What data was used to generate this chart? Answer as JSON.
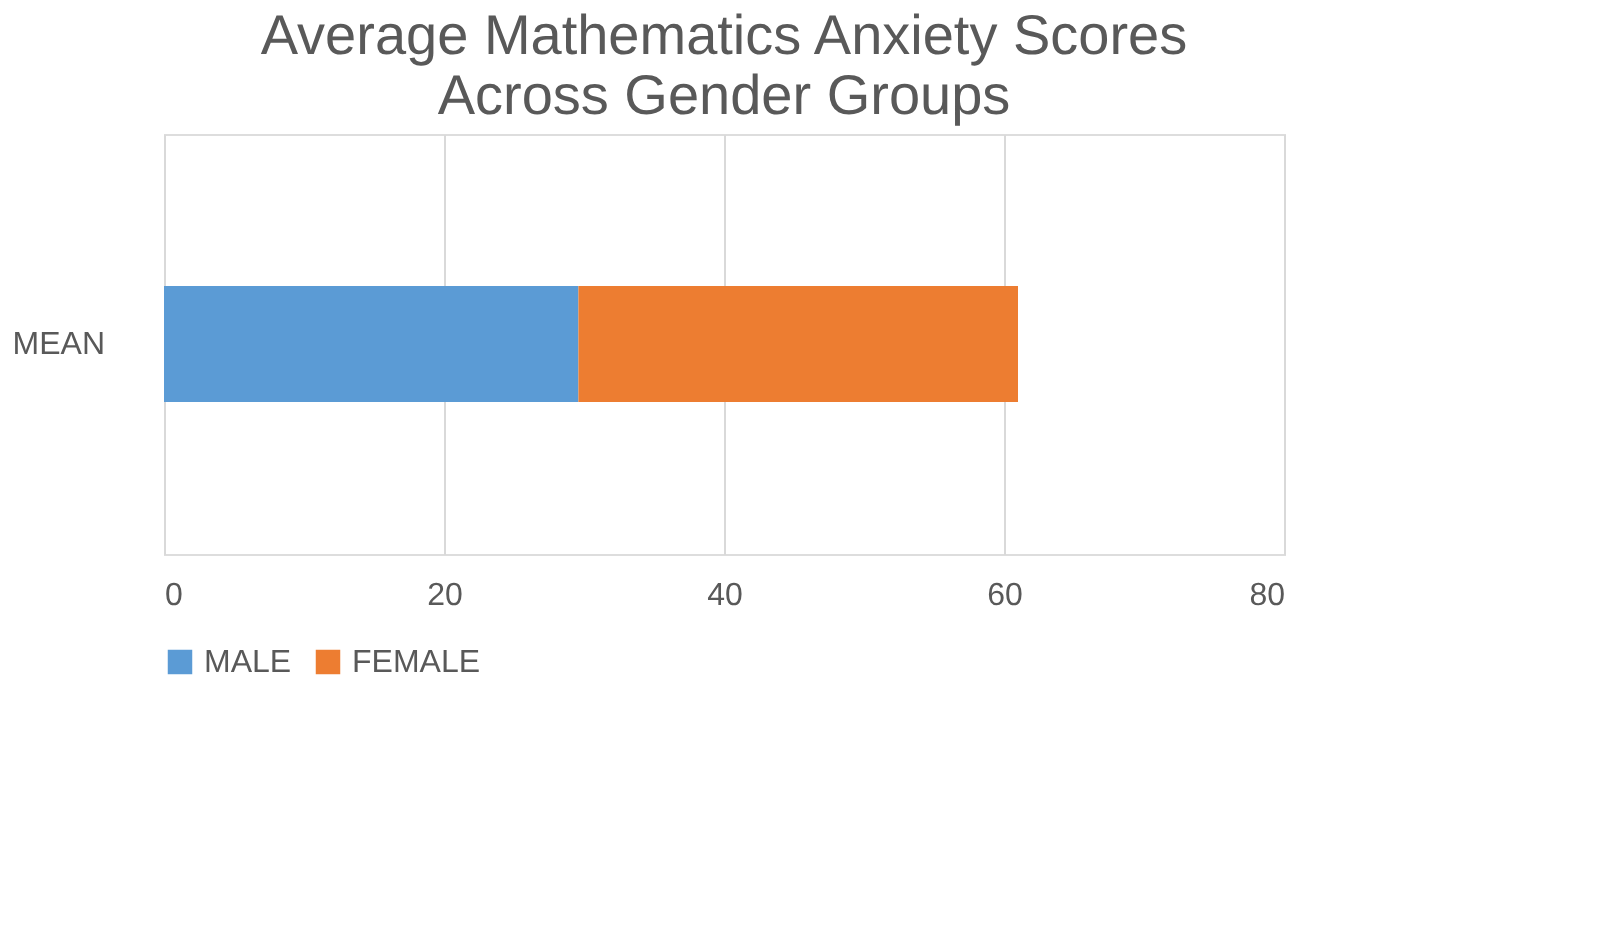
{
  "chart_data": {
    "type": "bar",
    "title": [
      "Average Mathematics Anxiety Scores",
      "Across Gender Groups"
    ],
    "orientation": "horizontal",
    "stacked": true,
    "categories": [
      "MEAN"
    ],
    "series": [
      {
        "name": "MALE",
        "color": "#5b9bd5",
        "values": [
          29.6
        ]
      },
      {
        "name": "FEMALE",
        "color": "#ed7d31",
        "values": [
          31.4
        ]
      }
    ],
    "xlim": [
      0,
      80
    ],
    "xticks": [
      0,
      20,
      40,
      60,
      80
    ],
    "grid": "x",
    "legend": "bottom"
  }
}
